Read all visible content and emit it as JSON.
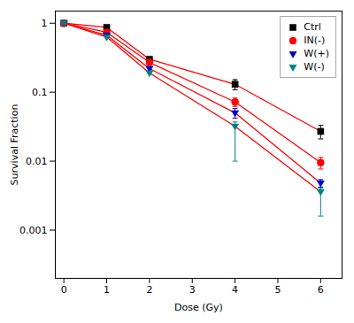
{
  "chart_data": {
    "type": "line",
    "xlabel": "Dose (Gy)",
    "ylabel": "Survival Fraction",
    "log": "y",
    "grid": false,
    "legend": "upper right",
    "color": "#ff0000",
    "xlim": [
      -0.2,
      6.5
    ],
    "ylim": [
      0.0002,
      1.5
    ],
    "xticks": [
      0,
      1,
      2,
      3,
      4,
      5,
      6
    ],
    "yticks": [
      0.001,
      0.01,
      0.1,
      1
    ],
    "series": [
      {
        "name": "Ctrl",
        "color": "#000000",
        "marker": "square",
        "x": [
          0,
          1,
          2,
          4,
          6
        ],
        "values": [
          1.0,
          0.87,
          0.3,
          0.13,
          0.027
        ],
        "yerr": [
          0.0,
          0.0,
          0.0,
          0.022,
          0.006
        ]
      },
      {
        "name": "IN(-)",
        "color": "#ff0000",
        "marker": "circle",
        "x": [
          0,
          1,
          2,
          4,
          6
        ],
        "values": [
          1.0,
          0.74,
          0.27,
          0.072,
          0.0095
        ],
        "yerr": [
          0.0,
          0.0,
          0.0,
          0.01,
          0.0018
        ]
      },
      {
        "name": "W(+)",
        "color": "#0000cc",
        "marker": "triangle-down",
        "x": [
          0,
          1,
          2,
          4,
          6
        ],
        "values": [
          1.0,
          0.67,
          0.22,
          0.05,
          0.0048
        ],
        "yerr": [
          0.0,
          0.0,
          0.0,
          0.008,
          0.0006
        ]
      },
      {
        "name": "W(-)",
        "color": "#008080",
        "marker": "triangle-down",
        "x": [
          0,
          1,
          2,
          4,
          6
        ],
        "values": [
          1.0,
          0.63,
          0.19,
          0.032,
          0.0036
        ],
        "yerr_up": [
          0.0,
          0.0,
          0.0,
          0.005,
          0.0005
        ],
        "yerr_dn": [
          0.0,
          0.0,
          0.0,
          0.022,
          0.002
        ]
      }
    ]
  }
}
